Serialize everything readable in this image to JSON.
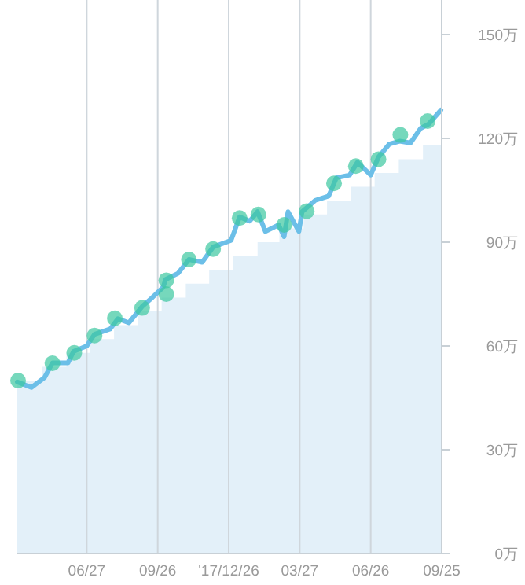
{
  "chart_data": {
    "type": "line",
    "xlim": [
      "2017-03-30",
      "2018-09-25"
    ],
    "ylim": [
      0,
      160
    ],
    "xticks": [
      {
        "value": "2017-06-27",
        "label": "06/27"
      },
      {
        "value": "2017-09-26",
        "label": "09/26"
      },
      {
        "value": "2017-12-26",
        "label": "'17/12/26"
      },
      {
        "value": "2018-03-27",
        "label": "03/27"
      },
      {
        "value": "2018-06-26",
        "label": "06/26"
      },
      {
        "value": "2018-09-25",
        "label": "09/25"
      }
    ],
    "yticks": [
      {
        "value": 0,
        "label": "0万"
      },
      {
        "value": 30,
        "label": "30万"
      },
      {
        "value": 60,
        "label": "60万"
      },
      {
        "value": 90,
        "label": "90万"
      },
      {
        "value": 120,
        "label": "120万"
      },
      {
        "value": 150,
        "label": "150万"
      }
    ],
    "grid": "x",
    "series": [
      {
        "type": "area",
        "color": "#e3f0f9",
        "x": [
          "2017-03-30",
          "2017-05-01",
          "2017-05-01",
          "2017-06-01",
          "2017-06-01",
          "2017-07-01",
          "2017-07-01",
          "2017-08-01",
          "2017-08-01",
          "2017-09-01",
          "2017-09-01",
          "2017-10-01",
          "2017-10-01",
          "2017-11-01",
          "2017-11-01",
          "2017-12-01",
          "2017-12-01",
          "2018-01-01",
          "2018-01-01",
          "2018-02-01",
          "2018-02-01",
          "2018-03-01",
          "2018-03-01",
          "2018-04-01",
          "2018-04-01",
          "2018-05-01",
          "2018-05-01",
          "2018-06-01",
          "2018-06-01",
          "2018-07-01",
          "2018-07-01",
          "2018-08-01",
          "2018-08-01",
          "2018-09-01",
          "2018-09-01",
          "2018-09-25"
        ],
        "values": [
          50,
          50,
          54,
          54,
          58,
          58,
          62,
          62,
          66,
          66,
          70,
          70,
          74,
          74,
          78,
          78,
          82,
          82,
          86,
          86,
          90,
          90,
          94,
          94,
          98,
          98,
          102,
          102,
          106,
          106,
          110,
          110,
          114,
          114,
          118,
          118
        ]
      },
      {
        "color": "#6cbfe8",
        "x": [
          "2017-03-30",
          "2017-04-17",
          "2017-05-04",
          "2017-05-14",
          "2017-06-03",
          "2017-06-10",
          "2017-06-27",
          "2017-07-07",
          "2017-07-27",
          "2017-08-06",
          "2017-08-20",
          "2017-09-06",
          "2017-09-19",
          "2017-10-03",
          "2017-10-06",
          "2017-10-22",
          "2017-11-05",
          "2017-11-22",
          "2017-12-06",
          "2017-12-29",
          "2018-01-09",
          "2018-01-22",
          "2018-02-01",
          "2018-02-11",
          "2018-02-28",
          "2018-03-07",
          "2018-03-12",
          "2018-03-26",
          "2018-03-30",
          "2018-04-16",
          "2018-05-03",
          "2018-05-13",
          "2018-05-30",
          "2018-06-09",
          "2018-06-26",
          "2018-07-06",
          "2018-07-20",
          "2018-08-02",
          "2018-08-16",
          "2018-08-29",
          "2018-09-08",
          "2018-09-24"
        ],
        "values": [
          49.6,
          48,
          50.9,
          55.1,
          55.1,
          58.4,
          60,
          63.4,
          64.9,
          67.9,
          66.7,
          71.4,
          74,
          77,
          79.2,
          81,
          85,
          84.2,
          88.6,
          90.5,
          97.3,
          96.1,
          98.8,
          93.1,
          95,
          91.6,
          98.8,
          93.1,
          98.8,
          102.1,
          103.3,
          108.6,
          109.4,
          113.1,
          109.4,
          114.6,
          118.4,
          119.2,
          118.7,
          122.9,
          124.1,
          128.2
        ]
      },
      {
        "type": "scatter",
        "color": "#3cc8a0",
        "x": [
          "2017-03-31",
          "2017-05-14",
          "2017-06-11",
          "2017-07-07",
          "2017-08-02",
          "2017-09-06",
          "2017-10-07",
          "2017-10-07",
          "2017-11-05",
          "2017-12-06",
          "2018-01-09",
          "2018-02-02",
          "2018-03-07",
          "2018-04-05",
          "2018-05-10",
          "2018-06-07",
          "2018-07-06",
          "2018-08-03",
          "2018-09-07"
        ],
        "values": [
          50,
          55,
          58,
          63,
          68,
          71,
          79,
          75,
          85,
          88,
          97,
          98,
          95,
          99,
          107,
          112,
          114,
          121,
          125
        ]
      }
    ]
  }
}
